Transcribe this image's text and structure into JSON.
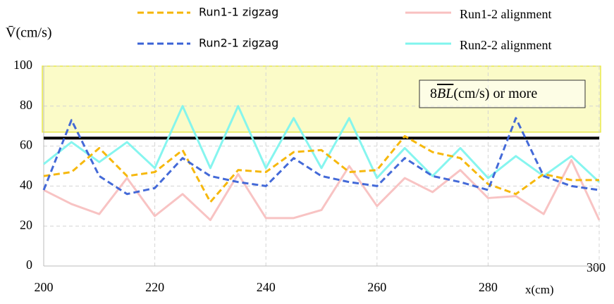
{
  "chart_data": {
    "type": "line",
    "ylabel": "V̄(cm/s)",
    "xlabel": "x(cm)",
    "x": [
      200,
      205,
      210,
      215,
      220,
      225,
      230,
      235,
      240,
      245,
      250,
      255,
      260,
      265,
      270,
      275,
      280,
      285,
      290,
      295,
      300
    ],
    "series": [
      {
        "name": "Run1-1 zigzag",
        "color": "#f5b400",
        "dash": true,
        "values": [
          45,
          47,
          59,
          45,
          47,
          58,
          32,
          48,
          47,
          57,
          58,
          47,
          48,
          65,
          57,
          54,
          41,
          36,
          46,
          43,
          43
        ]
      },
      {
        "name": "Run2-1 zigzag",
        "color": "#3a62d6",
        "dash": true,
        "values": [
          38,
          73,
          45,
          36,
          39,
          54,
          45,
          42,
          40,
          54,
          45,
          42,
          40,
          54,
          45,
          42,
          38,
          74,
          45,
          40,
          38
        ]
      },
      {
        "name": "Run1-2 alignment",
        "color": "#f8c0c0",
        "dash": false,
        "values": [
          38,
          31,
          26,
          44,
          25,
          36,
          23,
          46,
          24,
          24,
          28,
          50,
          30,
          44,
          37,
          48,
          34,
          35,
          26,
          53,
          23
        ]
      },
      {
        "name": "Run2-2 alignment",
        "color": "#80f4ee",
        "dash": false,
        "values": [
          51,
          62,
          52,
          62,
          49,
          80,
          49,
          80,
          49,
          74,
          49,
          74,
          44,
          59,
          45,
          59,
          44,
          55,
          45,
          55,
          42
        ]
      }
    ],
    "threshold_line": 64,
    "shaded_range": [
      67,
      100
    ],
    "annotation": {
      "prefix": "8",
      "symbol": "BL",
      "suffix": "(cm/s) or more"
    },
    "xlim": [
      200,
      300
    ],
    "xticks": [
      200,
      220,
      240,
      260,
      280,
      300
    ],
    "ylim": [
      0,
      100
    ],
    "yticks": [
      0,
      20,
      40,
      60,
      80,
      100
    ],
    "grid": true,
    "legend": "top"
  }
}
